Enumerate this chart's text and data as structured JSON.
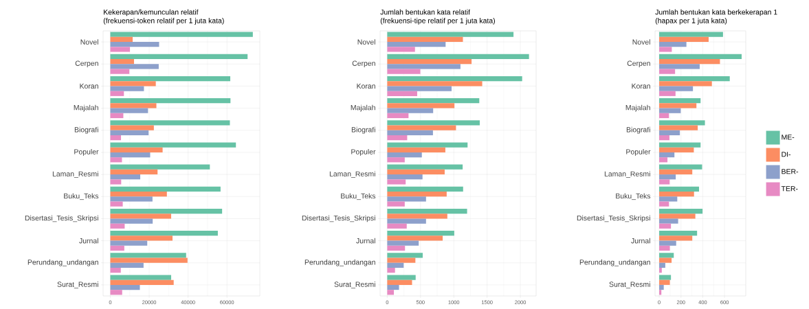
{
  "chart_data": [
    {
      "type": "bar",
      "orientation": "horizontal",
      "title": "Kekerapan/kemunculan relatif",
      "subtitle": "(frekuensi-token relatif per 1 juta kata)",
      "categories": [
        "Novel",
        "Cerpen",
        "Koran",
        "Majalah",
        "Biografi",
        "Populer",
        "Laman_Resmi",
        "Buku_Teks",
        "Disertasi_Tesis_Skripsi",
        "Jurnal",
        "Perundang_undangan",
        "Surat_Resmi"
      ],
      "xlim": [
        -3700,
        76900
      ],
      "xticks": [
        0,
        20000,
        40000,
        60000
      ],
      "grid": true,
      "legend": false,
      "series": [
        {
          "color": "#66c2a5",
          "values": [
            73300,
            70600,
            61700,
            61800,
            61500,
            64600,
            51200,
            56700,
            57500,
            55300,
            39000,
            31300
          ]
        },
        {
          "color": "#fc8d62",
          "values": [
            11500,
            12200,
            23400,
            23700,
            22400,
            26900,
            24300,
            29100,
            31300,
            32000,
            39700,
            32600
          ]
        },
        {
          "color": "#8da0cb",
          "values": [
            25100,
            24900,
            17300,
            19400,
            19700,
            20500,
            15400,
            21700,
            21800,
            19000,
            17100,
            15200
          ]
        },
        {
          "color": "#e78ac3",
          "values": [
            10100,
            9800,
            7000,
            6700,
            5500,
            6000,
            5600,
            6400,
            7400,
            7200,
            5400,
            6100
          ]
        }
      ]
    },
    {
      "type": "bar",
      "orientation": "horizontal",
      "title": "Jumlah bentukan kata relatif",
      "subtitle": "(frekuensi-tipe relatif per 1 juta kata)",
      "categories": [
        "Novel",
        "Cerpen",
        "Koran",
        "Majalah",
        "Biografi",
        "Populer",
        "Laman_Resmi",
        "Buku_Teks",
        "Disertasi_Tesis_Skripsi",
        "Jurnal",
        "Perundang_undangan",
        "Surat_Resmi"
      ],
      "xlim": [
        -107,
        2237
      ],
      "xticks": [
        0,
        500,
        1000,
        1500,
        2000
      ],
      "grid": true,
      "legend": false,
      "series": [
        {
          "color": "#66c2a5",
          "values": [
            1897,
            2130,
            2027,
            1383,
            1390,
            1207,
            1133,
            1140,
            1200,
            1007,
            533,
            427
          ]
        },
        {
          "color": "#fc8d62",
          "values": [
            1137,
            1267,
            1427,
            1010,
            1033,
            873,
            863,
            893,
            903,
            833,
            423,
            373
          ]
        },
        {
          "color": "#8da0cb",
          "values": [
            877,
            1100,
            967,
            690,
            687,
            520,
            530,
            583,
            583,
            473,
            247,
            177
          ]
        },
        {
          "color": "#e78ac3",
          "values": [
            417,
            497,
            450,
            320,
            300,
            263,
            277,
            263,
            293,
            267,
            117,
            100
          ]
        }
      ]
    },
    {
      "type": "bar",
      "orientation": "horizontal",
      "title": "Jumlah bentukan kata berkekerapan 1",
      "subtitle": "(hapax per 1 juta kata)",
      "categories": [
        "Novel",
        "Cerpen",
        "Koran",
        "Majalah",
        "Biografi",
        "Populer",
        "Laman_Resmi",
        "Buku_Teks",
        "Disertasi_Tesis_Skripsi",
        "Jurnal",
        "Perundang_undangan",
        "Surat_Resmi"
      ],
      "xlim": [
        -38,
        795
      ],
      "xticks": [
        0,
        200,
        400,
        600
      ],
      "grid": true,
      "legend": "right",
      "series": [
        {
          "name": "ME-",
          "color": "#66c2a5",
          "values": [
            586,
            757,
            648,
            380,
            420,
            380,
            394,
            366,
            398,
            348,
            134,
            108
          ]
        },
        {
          "name": "DI-",
          "color": "#fc8d62",
          "values": [
            454,
            558,
            484,
            342,
            354,
            318,
            304,
            320,
            332,
            304,
            114,
            98
          ]
        },
        {
          "name": "BER-",
          "color": "#8da0cb",
          "values": [
            250,
            372,
            310,
            198,
            190,
            140,
            152,
            166,
            174,
            156,
            56,
            42
          ]
        },
        {
          "name": "TER-",
          "color": "#e78ac3",
          "values": [
            116,
            146,
            150,
            90,
            94,
            76,
            96,
            90,
            108,
            98,
            24,
            20
          ]
        }
      ]
    }
  ]
}
